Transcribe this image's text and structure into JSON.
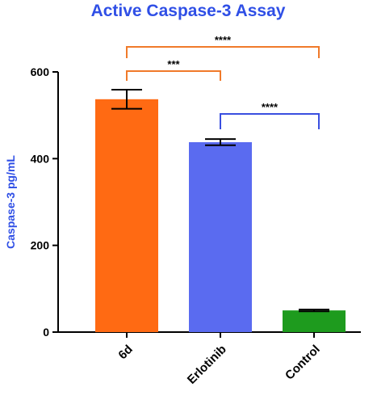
{
  "chart_data": {
    "type": "bar",
    "title": "Active Caspase-3 Assay",
    "ylabel": "Caspase-3 pg/mL",
    "categories": [
      "6d",
      "Erlotinib",
      "Control"
    ],
    "values": [
      537,
      438,
      50
    ],
    "errors": [
      22,
      7,
      2
    ],
    "colors": [
      "#ff6a13",
      "#5a6bf0",
      "#1e9b1e"
    ],
    "ylim": [
      0,
      600
    ],
    "yticks": [
      0,
      200,
      400,
      600
    ],
    "annotations": [
      {
        "label": "***",
        "pair": [
          0,
          1
        ],
        "color": "#f07a2a"
      },
      {
        "label": "****",
        "pair": [
          0,
          2
        ],
        "color": "#f07a2a"
      },
      {
        "label": "****",
        "pair": [
          1,
          2
        ],
        "color": "#3a4fe0"
      }
    ]
  }
}
